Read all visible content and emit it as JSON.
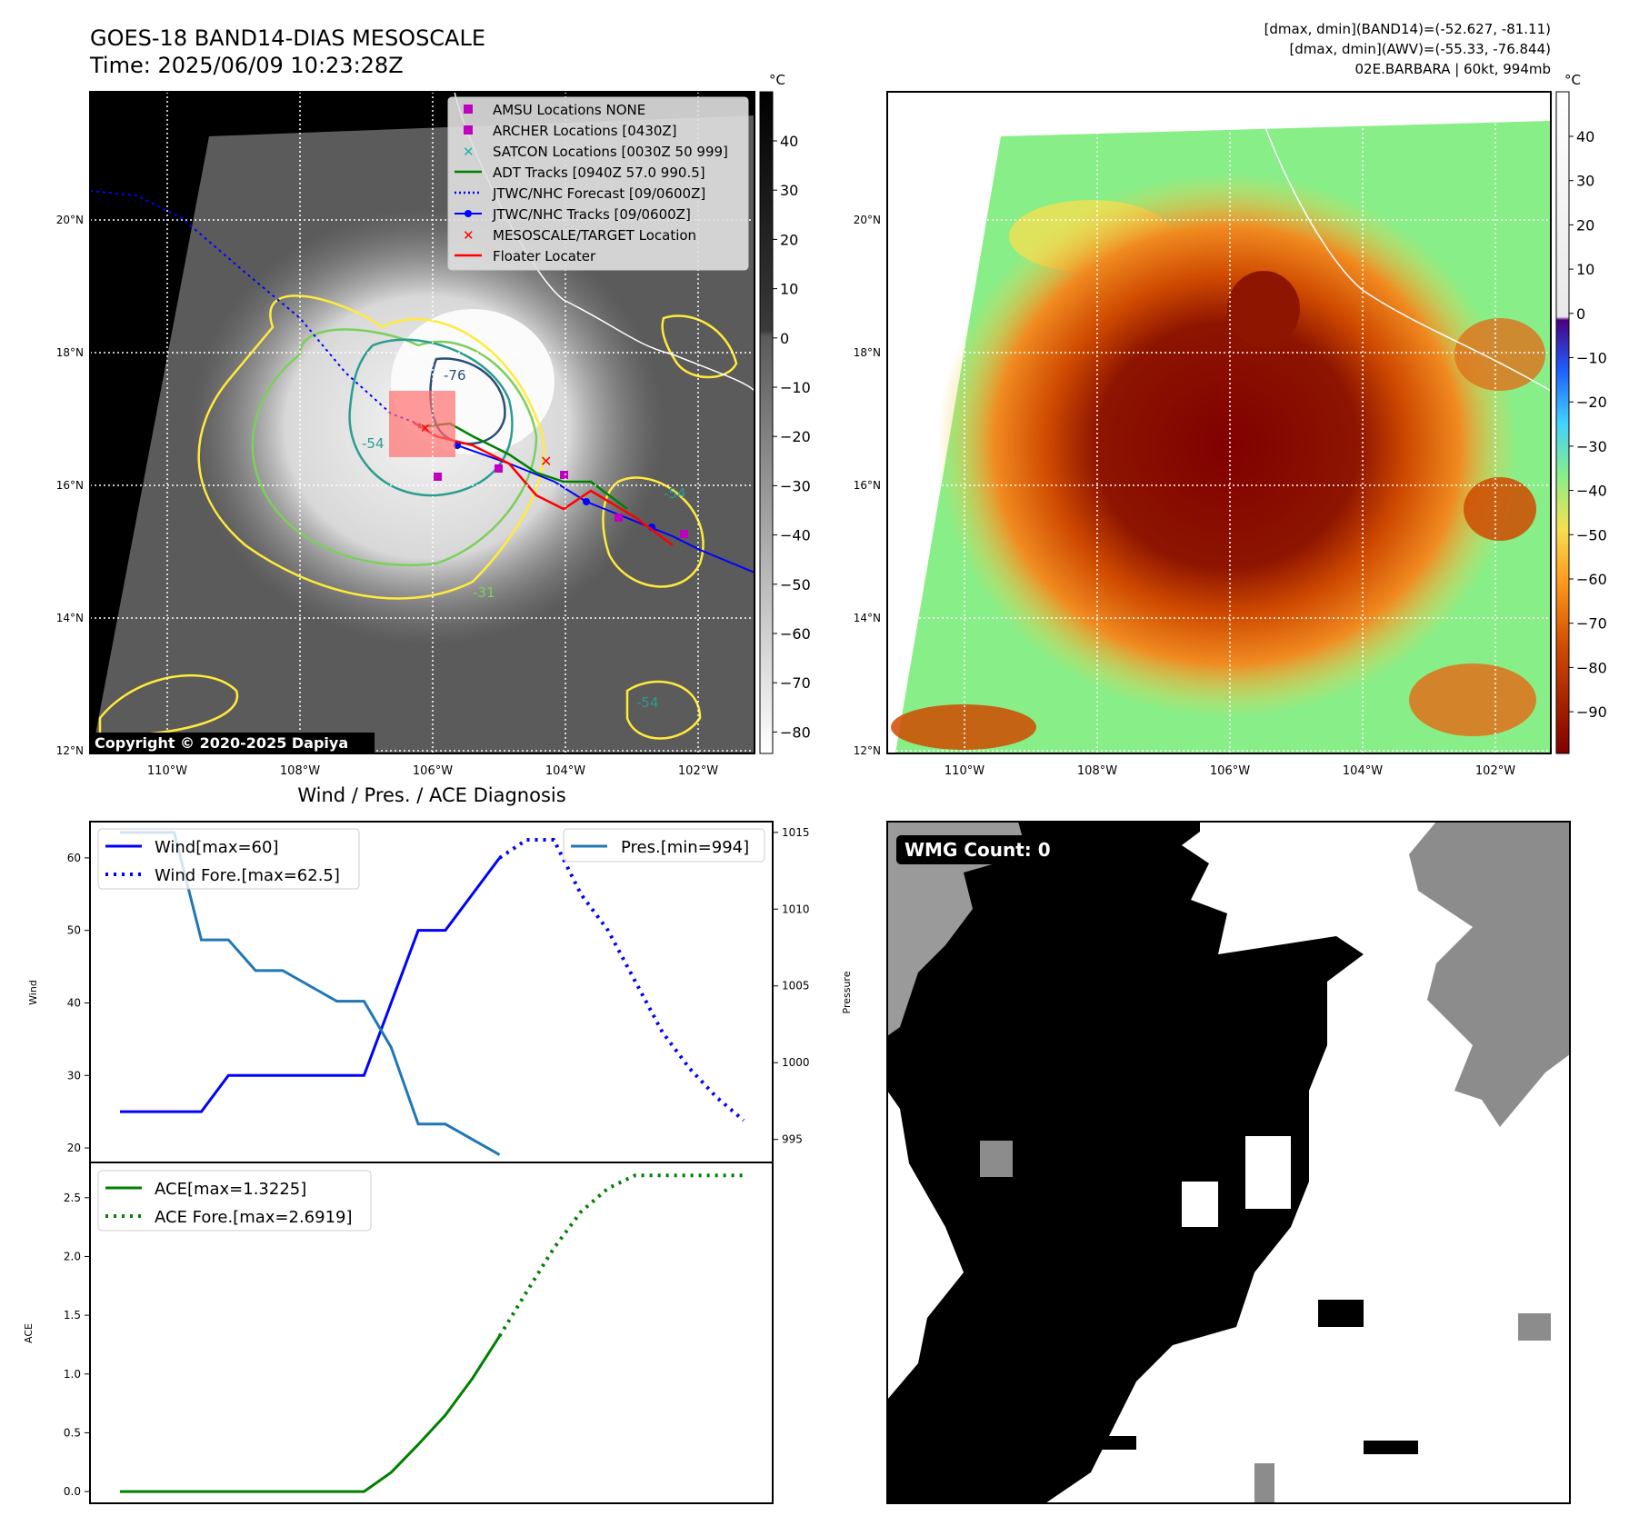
{
  "header": {
    "title_line1": "GOES-18 BAND14-DIAS MESOSCALE",
    "title_line2": "Time: 2025/06/09 10:23:28Z",
    "info_line1": "[dmax, dmin](BAND14)=(-52.627, -81.11)",
    "info_line2": "[dmax, dmin](AWV)=(-55.33, -76.844)",
    "info_line3": "02E.BARBARA | 60kt, 994mb"
  },
  "map": {
    "lat_labels": [
      "20°N",
      "18°N",
      "16°N",
      "14°N",
      "12°N"
    ],
    "lon_labels": [
      "110°W",
      "108°W",
      "106°W",
      "104°W",
      "102°W"
    ],
    "lat_values": [
      20,
      18,
      16,
      14,
      12
    ],
    "lon_values": [
      -110,
      -108,
      -106,
      -104,
      -102
    ],
    "lat_range": [
      12,
      22
    ],
    "lon_range": [
      -111.2,
      -101.2
    ],
    "copyright": "Copyright © 2020-2025 Dapiya",
    "contour_labels": [
      "-76",
      "-54",
      "-54",
      "-31",
      "-54"
    ],
    "legend": [
      {
        "label": "AMSU Locations NONE",
        "color": "#c000c0",
        "marker": "square"
      },
      {
        "label": "ARCHER Locations [0430Z]",
        "color": "#c000c0",
        "marker": "square"
      },
      {
        "label": "SATCON Locations [0030Z 50 999]",
        "color": "#20b2aa",
        "marker": "x"
      },
      {
        "label": "ADT Tracks [0940Z 57.0 990.5]",
        "color": "#008000",
        "marker": "line"
      },
      {
        "label": "JTWC/NHC Forecast [09/0600Z]",
        "color": "#0000ff",
        "marker": "dotted"
      },
      {
        "label": "JTWC/NHC Tracks [09/0600Z]",
        "color": "#0000ff",
        "marker": "line-dot"
      },
      {
        "label": "MESOSCALE/TARGET Location",
        "color": "#ff0000",
        "marker": "x"
      },
      {
        "label": "Floater Locater",
        "color": "#ff0000",
        "marker": "line"
      }
    ],
    "colorbar_gray": {
      "unit": "°C",
      "ticks": [
        "40",
        "30",
        "20",
        "10",
        "0",
        "−10",
        "−20",
        "−30",
        "−40",
        "−50",
        "−60",
        "−70",
        "−80"
      ]
    },
    "colorbar_color": {
      "unit": "°C",
      "ticks": [
        "40",
        "30",
        "20",
        "10",
        "0",
        "−10",
        "−20",
        "−30",
        "−40",
        "−50",
        "−60",
        "−70",
        "−80",
        "−90"
      ]
    }
  },
  "wmg": {
    "label": "WMG Count: 0"
  },
  "colors": {
    "wind": "#0000ff",
    "pres": "#1f77b4",
    "ace": "#008000",
    "track_red": "#ff0000",
    "adt_green": "#008000"
  },
  "chart_data": [
    {
      "type": "line",
      "title": "Wind / Pres. / ACE Diagnosis",
      "ylabel": "Wind",
      "ylim": [
        18.0,
        65.0
      ],
      "series": [
        {
          "name": "Wind[max=60]",
          "style": "solid",
          "x": [
            0,
            1,
            2,
            3,
            4,
            5,
            6,
            7,
            8,
            9,
            10,
            11,
            12,
            13,
            14,
            15
          ],
          "values": [
            25,
            25,
            25,
            25,
            30,
            30,
            30,
            30,
            30,
            30,
            40,
            50,
            50,
            55,
            60,
            null
          ]
        },
        {
          "name": "Wind Fore.[max=62.5]",
          "style": "dotted",
          "x": [
            14,
            15,
            16,
            17,
            18,
            19,
            20,
            21,
            22,
            23
          ],
          "values": [
            60,
            62.5,
            62.5,
            55,
            50,
            43,
            36,
            31,
            27,
            23.8
          ]
        }
      ]
    },
    {
      "type": "line",
      "ylabel": "Pressure",
      "ylim": [
        993.5,
        1015.7
      ],
      "series": [
        {
          "name": "Pres.[min=994]",
          "x": [
            0,
            1,
            2,
            3,
            4,
            5,
            6,
            7,
            8,
            9,
            10,
            11,
            12,
            13,
            14
          ],
          "values": [
            1015,
            1015,
            1015,
            1008,
            1008,
            1006,
            1006,
            1005,
            1004,
            1004,
            1001,
            996,
            996,
            995,
            994
          ]
        }
      ]
    },
    {
      "type": "line",
      "ylabel": "ACE",
      "ylim": [
        -0.1,
        2.8
      ],
      "series": [
        {
          "name": "ACE[max=1.3225]",
          "style": "solid",
          "x": [
            0,
            1,
            2,
            3,
            4,
            5,
            6,
            7,
            8,
            9,
            10,
            11,
            12,
            13,
            14
          ],
          "values": [
            0,
            0,
            0,
            0,
            0,
            0,
            0,
            0,
            0,
            0,
            0.1625,
            0.4,
            0.65,
            0.9625,
            1.3225
          ]
        },
        {
          "name": "ACE Fore.[max=2.6919]",
          "style": "dotted",
          "x": [
            14,
            15,
            16,
            17,
            18,
            19,
            20,
            21,
            22,
            23
          ],
          "values": [
            1.3225,
            1.7,
            2.07,
            2.38,
            2.58,
            2.69,
            2.69,
            2.69,
            2.69,
            2.69
          ]
        }
      ]
    }
  ]
}
